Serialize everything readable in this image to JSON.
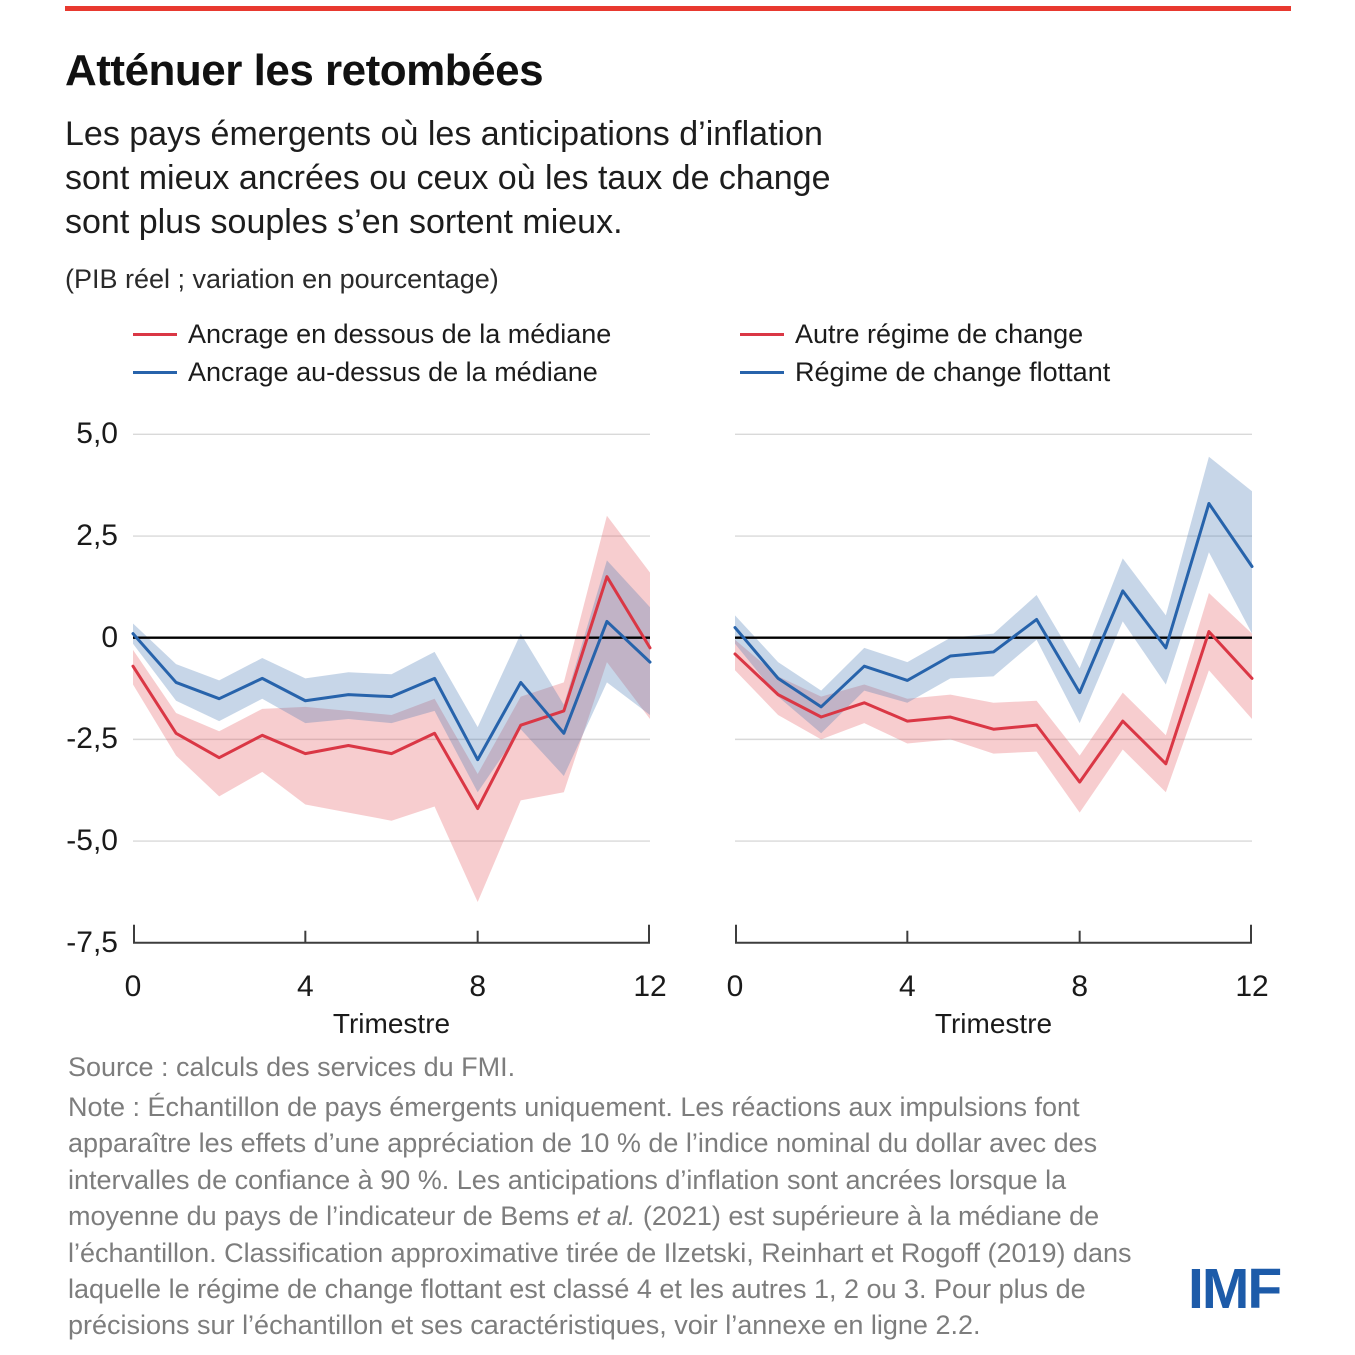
{
  "page": {
    "top_rule_color": "#e8392f",
    "background": "#ffffff",
    "grid_color": "#d9d9d9",
    "axis_color": "#3d3d3d",
    "zero_line_color": "#000000"
  },
  "header": {
    "title": "Atténuer les retombées",
    "subtitle_lines": [
      "Les pays émergents où les anticipations d’inflation",
      "sont mieux ancrées ou ceux où les taux de change",
      "sont plus souples s’en sortent mieux."
    ],
    "unit_label": "(PIB réel ; variation en pourcentage)"
  },
  "chart_data": [
    {
      "type": "line",
      "panel": "left",
      "xlabel": "Trimestre",
      "x": [
        0,
        1,
        2,
        3,
        4,
        5,
        6,
        7,
        8,
        9,
        10,
        11,
        12
      ],
      "xticks": [
        0,
        4,
        8,
        12
      ],
      "xticklabels": [
        "0",
        "4",
        "8",
        "12"
      ],
      "ylim": [
        -7.5,
        5.1
      ],
      "yticks": [
        5.0,
        2.5,
        0,
        -2.5,
        -5.0,
        -7.5
      ],
      "yticklabels": [
        "5,0",
        "2,5",
        "0",
        "-2,5",
        "-5,0",
        "-7,5"
      ],
      "grid_values": [
        5.0,
        2.5,
        -2.5,
        -5.0
      ],
      "zero_line": true,
      "show_y_labels": true,
      "legend_position": "top-left",
      "series": [
        {
          "name": "Ancrage en dessous de la médiane",
          "color": "#da3745",
          "band_color": "rgba(228,90,97,0.30)",
          "values": [
            -0.7,
            -2.35,
            -2.95,
            -2.4,
            -2.85,
            -2.65,
            -2.85,
            -2.35,
            -4.2,
            -2.15,
            -1.8,
            1.5,
            -0.25
          ],
          "band_high": [
            -0.3,
            -1.85,
            -2.3,
            -1.75,
            -1.7,
            -1.8,
            -1.9,
            -1.5,
            -3.35,
            -1.45,
            -1.1,
            3.0,
            1.6
          ],
          "band_low": [
            -1.15,
            -2.9,
            -3.9,
            -3.3,
            -4.1,
            -4.3,
            -4.5,
            -4.15,
            -6.5,
            -4.0,
            -3.8,
            -0.6,
            -2.0
          ]
        },
        {
          "name": "Ancrage au-dessus de la médiane",
          "color": "#2763ab",
          "band_color": "rgba(70,120,180,0.30)",
          "values": [
            0.1,
            -1.1,
            -1.5,
            -1.0,
            -1.55,
            -1.4,
            -1.45,
            -1.0,
            -3.0,
            -1.1,
            -2.35,
            0.4,
            -0.6
          ],
          "band_high": [
            0.35,
            -0.65,
            -1.05,
            -0.5,
            -1.0,
            -0.85,
            -0.9,
            -0.35,
            -2.2,
            0.1,
            -1.65,
            1.9,
            0.75
          ],
          "band_low": [
            -0.15,
            -1.55,
            -2.05,
            -1.5,
            -2.1,
            -2.0,
            -2.1,
            -1.8,
            -3.8,
            -2.25,
            -3.4,
            -1.1,
            -1.9
          ]
        }
      ]
    },
    {
      "type": "line",
      "panel": "right",
      "xlabel": "Trimestre",
      "x": [
        0,
        1,
        2,
        3,
        4,
        5,
        6,
        7,
        8,
        9,
        10,
        11,
        12
      ],
      "xticks": [
        0,
        4,
        8,
        12
      ],
      "xticklabels": [
        "0",
        "4",
        "8",
        "12"
      ],
      "ylim": [
        -7.5,
        5.1
      ],
      "yticks": [
        5.0,
        2.5,
        0,
        -2.5,
        -5.0,
        -7.5
      ],
      "yticklabels": [
        "5,0",
        "2,5",
        "0",
        "-2,5",
        "-5,0",
        "-7,5"
      ],
      "grid_values": [
        5.0,
        2.5,
        -2.5,
        -5.0
      ],
      "zero_line": true,
      "show_y_labels": false,
      "legend_position": "top-left",
      "series": [
        {
          "name": "Autre régime de change",
          "color": "#da3745",
          "band_color": "rgba(228,90,97,0.30)",
          "values": [
            -0.4,
            -1.4,
            -1.95,
            -1.6,
            -2.05,
            -1.95,
            -2.25,
            -2.15,
            -3.55,
            -2.05,
            -3.1,
            0.15,
            -1.0
          ],
          "band_high": [
            -0.05,
            -0.95,
            -1.45,
            -1.15,
            -1.5,
            -1.4,
            -1.6,
            -1.55,
            -2.9,
            -1.35,
            -2.4,
            1.1,
            0.1
          ],
          "band_low": [
            -0.8,
            -1.9,
            -2.5,
            -2.1,
            -2.6,
            -2.5,
            -2.85,
            -2.8,
            -4.3,
            -2.75,
            -3.8,
            -0.8,
            -2.0
          ]
        },
        {
          "name": "Régime de change flottant",
          "color": "#2763ab",
          "band_color": "rgba(70,120,180,0.30)",
          "values": [
            0.25,
            -1.0,
            -1.7,
            -0.7,
            -1.05,
            -0.45,
            -0.35,
            0.45,
            -1.35,
            1.15,
            -0.25,
            3.3,
            1.75
          ],
          "band_high": [
            0.55,
            -0.6,
            -1.3,
            -0.25,
            -0.6,
            0.0,
            0.1,
            1.05,
            -0.75,
            1.95,
            0.55,
            4.45,
            3.6
          ],
          "band_low": [
            -0.15,
            -1.45,
            -2.35,
            -1.3,
            -1.6,
            -1.0,
            -0.95,
            -0.05,
            -2.1,
            0.4,
            -1.15,
            2.1,
            0.1
          ]
        }
      ]
    }
  ],
  "footer": {
    "source": "Source : calculs des services du FMI.",
    "note_part1": "Note : Échantillon de pays émergents uniquement. Les réactions aux impulsions font apparaître les effets d’une appréciation de 10 % de l’indice nominal du dollar avec des intervalles de confiance à 90 %. Les anticipations d’inflation sont ancrées lorsque la moyenne du pays de l’indicateur de Bems ",
    "note_italic": "et al.",
    "note_part2": " (2021) est supérieure à la médiane de l’échantillon. Classification approximative tirée de Ilzetski, Reinhart et Rogoff (2019) dans laquelle le régime de change flottant est classé 4 et les autres 1, 2 ou 3. Pour plus de précisions sur l’échantillon et ses caractéristiques, voir l’annexe en ligne 2.2.",
    "logo_text": "IMF",
    "logo_color": "#1d5ba9"
  }
}
